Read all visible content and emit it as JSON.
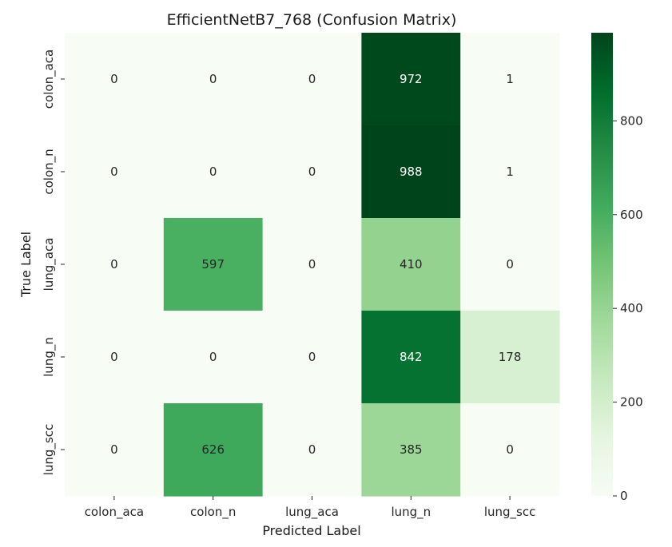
{
  "chart_data": {
    "type": "heatmap",
    "title": "EfficientNetB7_768 (Confusion Matrix)",
    "xlabel": "Predicted Label",
    "ylabel": "True Label",
    "x_categories": [
      "colon_aca",
      "colon_n",
      "lung_aca",
      "lung_n",
      "lung_scc"
    ],
    "y_categories": [
      "colon_aca",
      "colon_n",
      "lung_aca",
      "lung_n",
      "lung_scc"
    ],
    "values": [
      [
        0,
        0,
        0,
        972,
        1
      ],
      [
        0,
        0,
        0,
        988,
        1
      ],
      [
        0,
        597,
        0,
        410,
        0
      ],
      [
        0,
        0,
        0,
        842,
        178
      ],
      [
        0,
        626,
        0,
        385,
        0
      ]
    ],
    "colormap": "Greens",
    "vmin": 0,
    "vmax": 988,
    "colorbar_ticks": [
      0,
      200,
      400,
      600,
      800
    ]
  }
}
